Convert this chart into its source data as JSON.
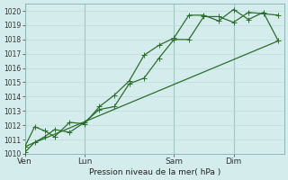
{
  "bg_color": "#d4ecec",
  "grid_color_minor": "#b8d8d8",
  "grid_color_major": "#8ab8b8",
  "line_color": "#2d6e2d",
  "xlabel_text": "Pression niveau de la mer( hPa )",
  "ylim": [
    1010,
    1020.5
  ],
  "yticks": [
    1010,
    1011,
    1012,
    1013,
    1014,
    1015,
    1016,
    1017,
    1018,
    1019,
    1020
  ],
  "xtick_labels": [
    "Ven",
    "Lun",
    "Sam",
    "Dim"
  ],
  "xtick_positions": [
    0.0,
    2.0,
    5.0,
    7.0
  ],
  "xlim": [
    0,
    8.7
  ],
  "series1_x": [
    0.0,
    0.33,
    0.67,
    1.0,
    1.5,
    2.0,
    2.5,
    3.0,
    3.5,
    4.0,
    4.5,
    5.0,
    5.5,
    6.0,
    6.5,
    7.0,
    7.5,
    8.0,
    8.5
  ],
  "series1_y": [
    1010.1,
    1010.8,
    1011.2,
    1011.7,
    1011.5,
    1012.2,
    1013.1,
    1013.3,
    1014.9,
    1015.3,
    1016.7,
    1018.0,
    1018.0,
    1019.6,
    1019.6,
    1019.2,
    1019.9,
    1019.8,
    1019.7
  ],
  "series2_x": [
    0.0,
    0.33,
    0.67,
    1.0,
    1.5,
    2.0,
    2.5,
    3.0,
    3.5,
    4.0,
    4.5,
    5.0,
    5.5,
    6.0,
    6.5,
    7.0,
    7.5,
    8.0,
    8.5
  ],
  "series2_y": [
    1010.5,
    1011.9,
    1011.6,
    1011.2,
    1012.2,
    1012.1,
    1013.3,
    1014.1,
    1015.1,
    1016.9,
    1017.6,
    1018.1,
    1019.7,
    1019.7,
    1019.3,
    1020.1,
    1019.4,
    1019.9,
    1017.9
  ],
  "series3_x": [
    0.0,
    8.5
  ],
  "series3_y": [
    1010.5,
    1017.9
  ],
  "vlines": [
    0.0,
    2.0,
    5.0,
    7.0
  ],
  "marker_size": 3,
  "line_width": 0.9
}
